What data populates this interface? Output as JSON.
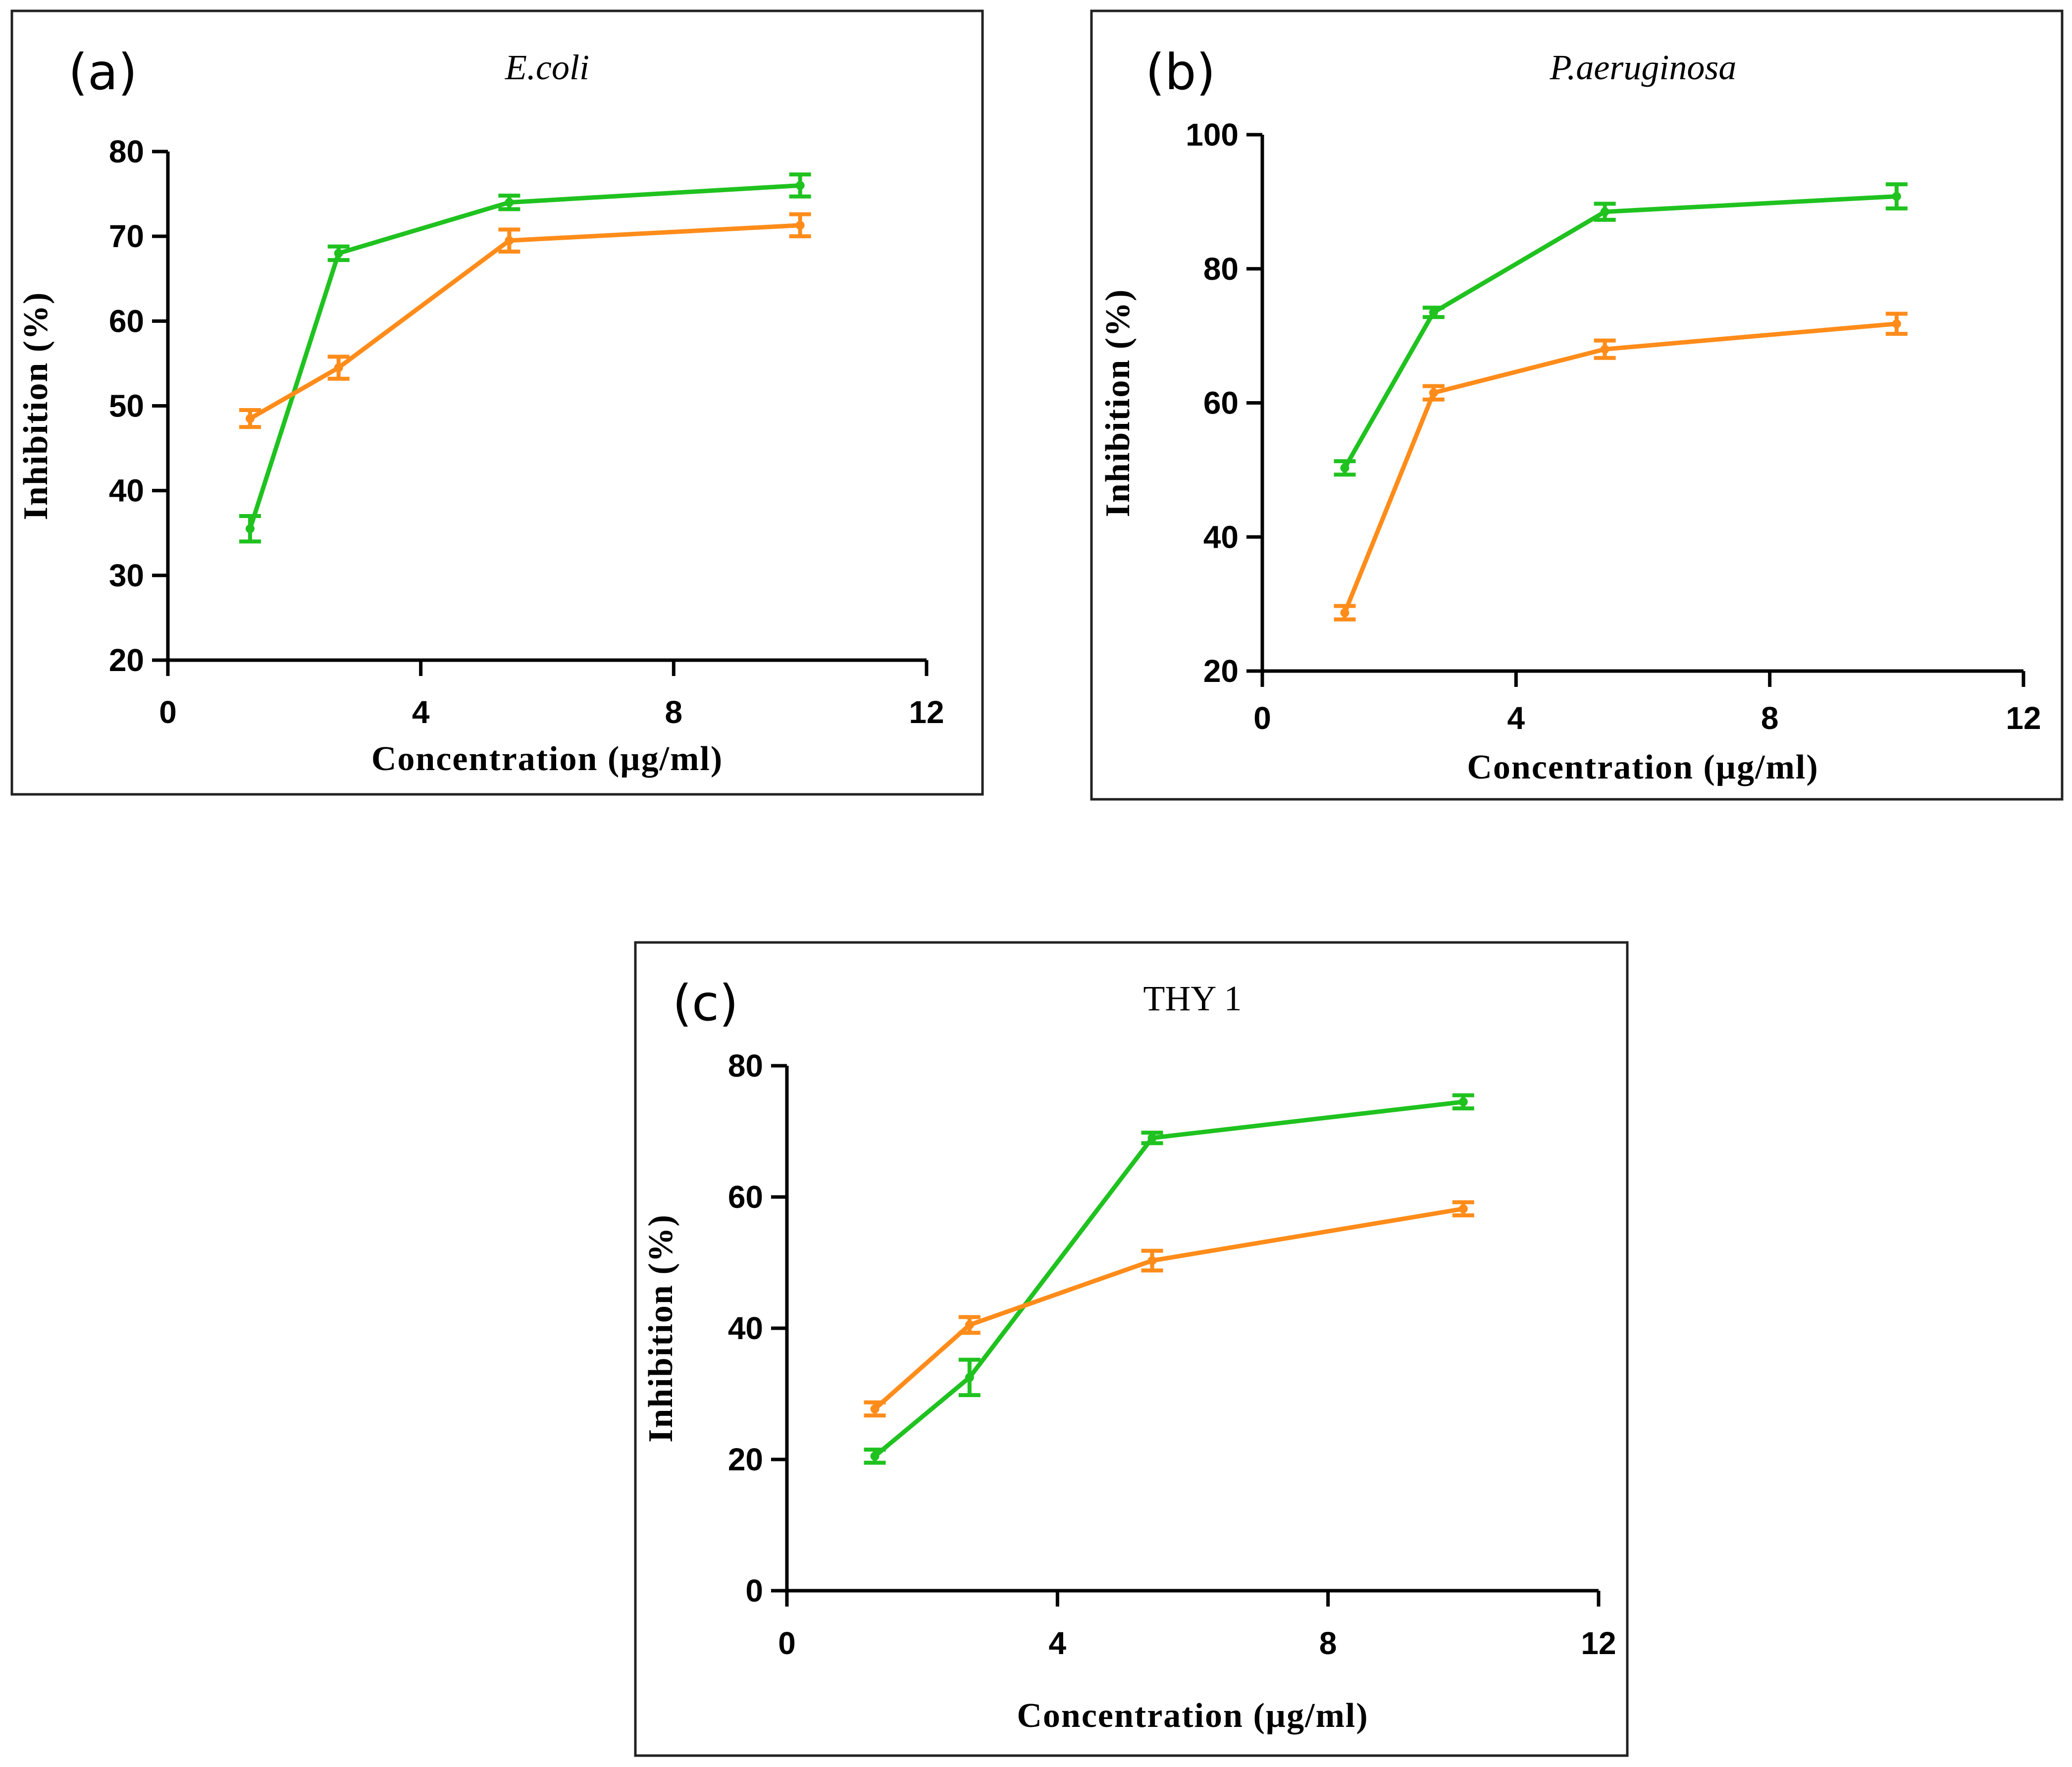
{
  "colors": {
    "green": "#1fc21f",
    "orange": "#ff8c1a",
    "axis": "#000000"
  },
  "chart_data": [
    {
      "type": "line",
      "panel_label": "(a)",
      "title": "E.coli",
      "title_italic": true,
      "xlabel": "Concentration (µg/ml)",
      "ylabel": "Inhibition (%)",
      "xlim": [
        0,
        12
      ],
      "ylim": [
        20,
        80
      ],
      "xticks": [
        0,
        4,
        8,
        12
      ],
      "yticks": [
        20,
        30,
        40,
        50,
        60,
        70,
        80
      ],
      "x": [
        1.3,
        2.7,
        5.4,
        10
      ],
      "series": [
        {
          "color": "green",
          "values": [
            35.5,
            68,
            74,
            76
          ],
          "errors": [
            1.5,
            0.8,
            0.8,
            1.3
          ]
        },
        {
          "color": "orange",
          "values": [
            48.5,
            54.5,
            69.5,
            71.3
          ],
          "errors": [
            1.0,
            1.3,
            1.3,
            1.3
          ]
        }
      ]
    },
    {
      "type": "line",
      "panel_label": "(b)",
      "title": "P.aeruginosa",
      "title_italic": true,
      "xlabel": "Concentration (µg/ml)",
      "ylabel": "Inhibition (%)",
      "xlim": [
        0,
        12
      ],
      "ylim": [
        20,
        100
      ],
      "xticks": [
        0,
        4,
        8,
        12
      ],
      "yticks": [
        20,
        40,
        60,
        80,
        100
      ],
      "x": [
        1.3,
        2.7,
        5.4,
        10
      ],
      "series": [
        {
          "color": "green",
          "values": [
            50.3,
            73.5,
            88.5,
            90.8
          ],
          "errors": [
            1.0,
            0.7,
            1.2,
            1.8
          ]
        },
        {
          "color": "orange",
          "values": [
            28.7,
            61.5,
            68,
            71.8
          ],
          "errors": [
            1.0,
            1.0,
            1.3,
            1.5
          ]
        }
      ]
    },
    {
      "type": "line",
      "panel_label": "(c)",
      "title": "THY 1",
      "title_italic": false,
      "xlabel": "Concentration (µg/ml)",
      "ylabel": "Inhibition (%)",
      "xlim": [
        0,
        12
      ],
      "ylim": [
        0,
        80
      ],
      "xticks": [
        0,
        4,
        8,
        12
      ],
      "yticks": [
        0,
        20,
        40,
        60,
        80
      ],
      "x": [
        1.3,
        2.7,
        5.4,
        10
      ],
      "series": [
        {
          "color": "green",
          "values": [
            20.5,
            32.5,
            69,
            74.5
          ],
          "errors": [
            1.0,
            2.7,
            0.8,
            1.0
          ]
        },
        {
          "color": "orange",
          "values": [
            27.7,
            40.5,
            50.3,
            58.2
          ],
          "errors": [
            1.0,
            1.2,
            1.5,
            1.0
          ]
        }
      ]
    }
  ]
}
